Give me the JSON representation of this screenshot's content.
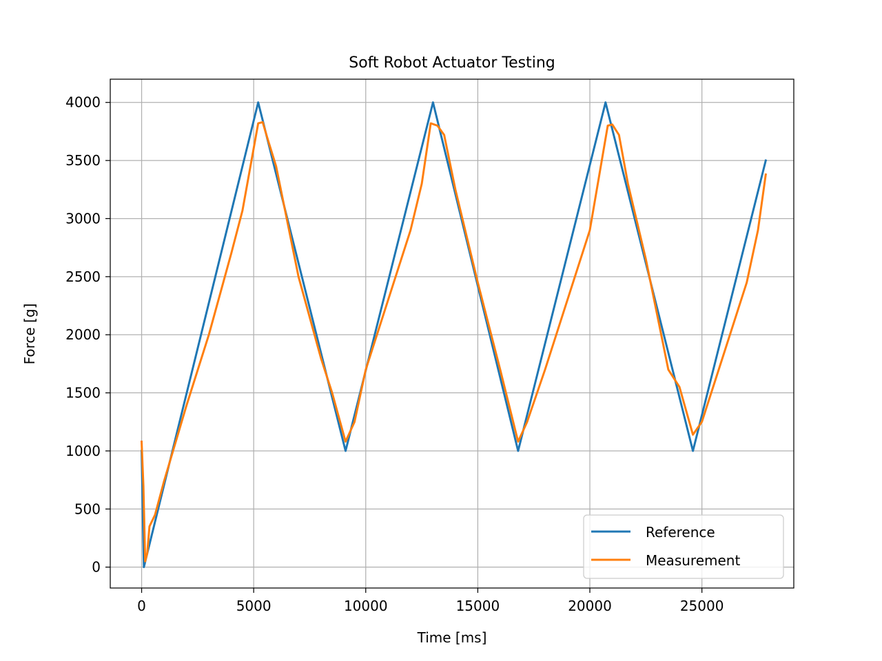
{
  "chart_data": {
    "type": "line",
    "title": "Soft Robot Actuator Testing",
    "xlabel": "Time [ms]",
    "ylabel": "Force [g]",
    "xlim": [
      -1400,
      29100
    ],
    "ylim": [
      -180,
      4200
    ],
    "xticks": [
      0,
      5000,
      10000,
      15000,
      20000,
      25000
    ],
    "yticks": [
      0,
      500,
      1000,
      1500,
      2000,
      2500,
      3000,
      3500,
      4000
    ],
    "grid": true,
    "legend_position": "lower-right",
    "series": [
      {
        "name": "Reference",
        "color": "#1f77b4",
        "x": [
          0,
          100,
          5200,
          9100,
          13000,
          16800,
          20700,
          24600,
          27850
        ],
        "y": [
          1000,
          0,
          4000,
          1000,
          4000,
          1000,
          4000,
          1000,
          3500
        ]
      },
      {
        "name": "Measurement",
        "color": "#ff7f0e",
        "x": [
          0,
          80,
          160,
          250,
          350,
          600,
          1000,
          2000,
          3000,
          4000,
          4500,
          5200,
          5400,
          5600,
          6000,
          7000,
          8000,
          8500,
          9100,
          9500,
          10000,
          11000,
          12000,
          12500,
          12900,
          13200,
          13500,
          14000,
          15000,
          16000,
          16800,
          17200,
          18000,
          19000,
          20000,
          20800,
          21000,
          21300,
          21700,
          22500,
          23500,
          24000,
          24600,
          25000,
          26000,
          27000,
          27500,
          27850
        ],
        "y": [
          1080,
          700,
          50,
          120,
          350,
          450,
          740,
          1390,
          2000,
          2700,
          3070,
          3820,
          3830,
          3700,
          3450,
          2500,
          1800,
          1500,
          1080,
          1250,
          1700,
          2300,
          2900,
          3300,
          3820,
          3800,
          3720,
          3250,
          2450,
          1700,
          1080,
          1250,
          1700,
          2300,
          2900,
          3800,
          3810,
          3720,
          3300,
          2650,
          1700,
          1550,
          1140,
          1250,
          1850,
          2450,
          2900,
          3380
        ]
      }
    ]
  }
}
